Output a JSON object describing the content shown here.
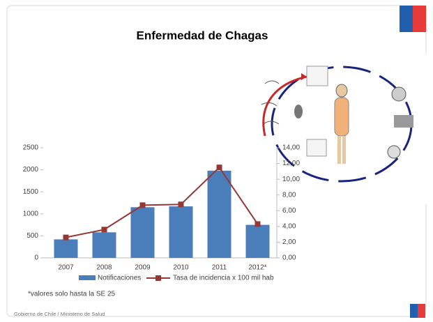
{
  "chart_data": {
    "type": "bar",
    "title": "Enfermedad de Chagas",
    "categories": [
      "2007",
      "2008",
      "2009",
      "2010",
      "2011",
      "2012*"
    ],
    "series": [
      {
        "name": "Notificaciones",
        "color": "#4a7ebb",
        "values": [
          420,
          580,
          1150,
          1170,
          1980,
          750
        ]
      },
      {
        "name": "Tasa de incidencia x 100 mil hab",
        "color": "#953735",
        "axis": "y2",
        "values": [
          2.6,
          3.6,
          6.7,
          6.8,
          11.5,
          4.3
        ]
      }
    ],
    "ylim": [
      0,
      2500
    ],
    "yticks": [
      0,
      500,
      1000,
      1500,
      2000,
      2500
    ],
    "y2lim": [
      0,
      14
    ],
    "y2ticks": [
      {
        "value": 0,
        "label": "0,00"
      },
      {
        "value": 2,
        "label": "2,00"
      },
      {
        "value": 4,
        "label": "4,00"
      },
      {
        "value": 6,
        "label": "6,00"
      },
      {
        "value": 8,
        "label": "8,00"
      },
      {
        "value": 10,
        "label": "10,00"
      },
      {
        "value": 12,
        "label": "12,00"
      },
      {
        "value": 14,
        "label": "14,00"
      }
    ],
    "note": "*valores solo hasta la SE 25",
    "legend": "bottom"
  },
  "footer": "Gobierno de Chile / Ministerio de Salud"
}
